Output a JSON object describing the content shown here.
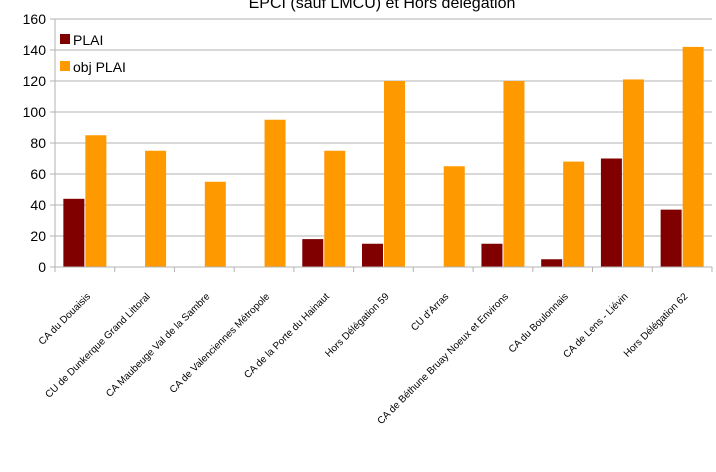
{
  "chart_data": {
    "type": "bar",
    "title": "EPCI (sauf LMCU) et Hors délégation",
    "categories": [
      "CA du Douaisis",
      "CU de Dunkerque Grand Littoral",
      "CA Maubeuge Val de la Sambre",
      "CA de Valenciennes Métropole",
      "CA de la Porte du Hainaut",
      "Hors Délégation 59",
      "CU d'Arras",
      "CA de Béthune Bruay Noeux et Environs",
      "CA du Boulonnais",
      "CA de Lens - Liévin",
      "Hors Délégation 62"
    ],
    "series": [
      {
        "name": "PLAI",
        "color": "#800000",
        "values": [
          44,
          0,
          0,
          0,
          18,
          15,
          0,
          15,
          5,
          70,
          37
        ]
      },
      {
        "name": "obj PLAI",
        "color": "#ff9900",
        "values": [
          85,
          75,
          55,
          95,
          75,
          120,
          65,
          120,
          68,
          121,
          142
        ]
      }
    ],
    "ylim": [
      0,
      160
    ],
    "yticks": [
      0,
      20,
      40,
      60,
      80,
      100,
      120,
      140,
      160
    ],
    "xlabel": "",
    "ylabel": "",
    "grid": true,
    "legend": "top-left"
  }
}
